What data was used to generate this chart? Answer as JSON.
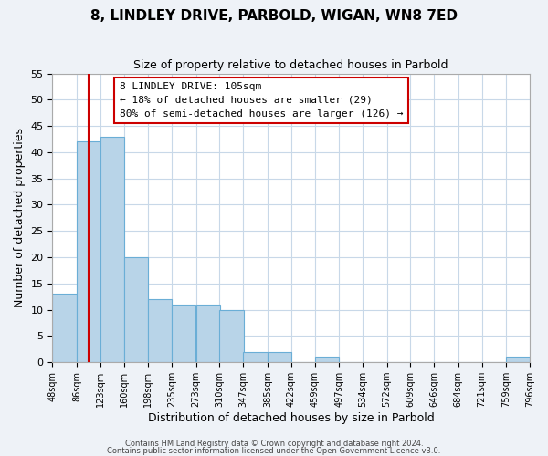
{
  "title": "8, LINDLEY DRIVE, PARBOLD, WIGAN, WN8 7ED",
  "subtitle": "Size of property relative to detached houses in Parbold",
  "xlabel": "Distribution of detached houses by size in Parbold",
  "ylabel": "Number of detached properties",
  "bins": [
    48,
    86,
    123,
    160,
    198,
    235,
    273,
    310,
    347,
    385,
    422,
    459,
    497,
    534,
    572,
    609,
    646,
    684,
    721,
    759,
    796
  ],
  "counts": [
    13,
    42,
    43,
    20,
    12,
    11,
    11,
    10,
    2,
    2,
    0,
    1,
    0,
    0,
    0,
    0,
    0,
    0,
    0,
    1
  ],
  "bar_color": "#b8d4e8",
  "bar_edge_color": "#6aaed6",
  "vline_x": 105,
  "vline_color": "#cc0000",
  "ylim": [
    0,
    55
  ],
  "yticks": [
    0,
    5,
    10,
    15,
    20,
    25,
    30,
    35,
    40,
    45,
    50,
    55
  ],
  "annotation_title": "8 LINDLEY DRIVE: 105sqm",
  "annotation_line1": "← 18% of detached houses are smaller (29)",
  "annotation_line2": "80% of semi-detached houses are larger (126) →",
  "footer1": "Contains HM Land Registry data © Crown copyright and database right 2024.",
  "footer2": "Contains public sector information licensed under the Open Government Licence v3.0.",
  "bg_color": "#eef2f7",
  "plot_bg_color": "#ffffff",
  "grid_color": "#c8d8e8"
}
